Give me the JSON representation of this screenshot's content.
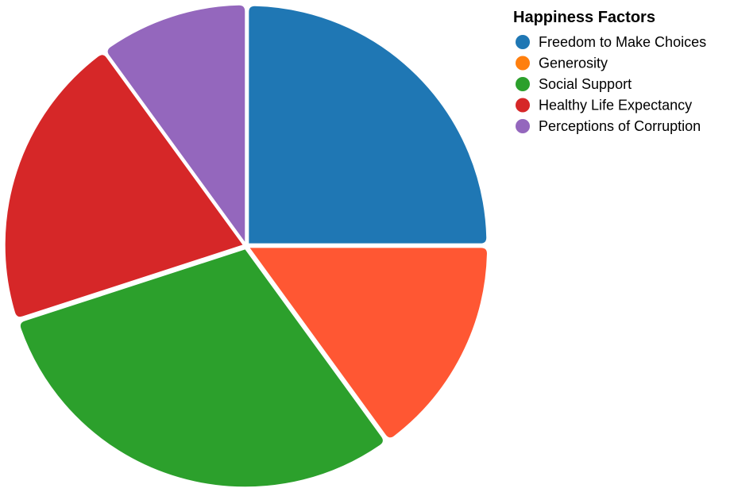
{
  "chart_data": {
    "type": "pie",
    "title": "",
    "legend": {
      "title": "Happiness Factors",
      "placement": "top-right",
      "entries": [
        {
          "label": "Freedom to Make Choices",
          "color": "#1f77b4"
        },
        {
          "label": "Generosity",
          "color": "#ff7f0e"
        },
        {
          "label": "Social Support",
          "color": "#2ca02c"
        },
        {
          "label": "Healthy Life Expectancy",
          "color": "#d62728"
        },
        {
          "label": "Perceptions of Corruption",
          "color": "#9467bd"
        }
      ]
    },
    "slices": [
      {
        "label": "Freedom to Make Choices",
        "value": 25,
        "color": "#1f77b4"
      },
      {
        "label": "Generosity",
        "value": 15,
        "color": "#ff5733"
      },
      {
        "label": "Social Support",
        "value": 30,
        "color": "#2ca02c"
      },
      {
        "label": "Healthy Life Expectancy",
        "value": 20,
        "color": "#d62728"
      },
      {
        "label": "Perceptions of Corruption",
        "value": 10,
        "color": "#9467bd"
      }
    ]
  }
}
